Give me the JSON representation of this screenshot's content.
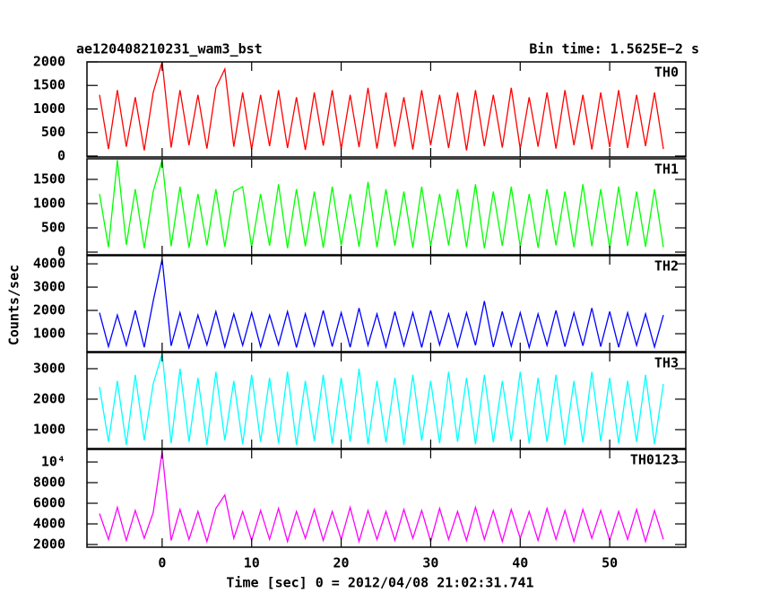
{
  "chart_data": {
    "type": "line",
    "title": "ae120408210231_wam3_bst",
    "subtitle": "Bin time: 1.5625E−2 s",
    "y_label": "Counts/sec",
    "x_label": "Time [sec] 0 = 2012/04/08 21:02:31.741",
    "xlim": [
      -8.4,
      58.5
    ],
    "xticks": [
      0,
      10,
      20,
      30,
      40,
      50
    ],
    "x": [
      -7,
      -6,
      -5,
      -4,
      -3,
      -2,
      -1,
      0,
      1,
      2,
      3,
      4,
      5,
      6,
      7,
      8,
      9,
      10,
      11,
      12,
      13,
      14,
      15,
      16,
      17,
      18,
      19,
      20,
      21,
      22,
      23,
      24,
      25,
      26,
      27,
      28,
      29,
      30,
      31,
      32,
      33,
      34,
      35,
      36,
      37,
      38,
      39,
      40,
      41,
      42,
      43,
      44,
      45,
      46,
      47,
      48,
      49,
      50,
      51,
      52,
      53,
      54,
      55,
      56
    ],
    "series": [
      {
        "name": "TH0",
        "color": "#ff0000",
        "ylim": [
          -20,
          2000
        ],
        "yticks": [
          0,
          500,
          1000,
          1500,
          2000
        ],
        "values": [
          1300,
          150,
          1400,
          200,
          1250,
          120,
          1350,
          2000,
          180,
          1400,
          230,
          1300,
          160,
          1450,
          1850,
          200,
          1350,
          140,
          1300,
          210,
          1400,
          170,
          1250,
          130,
          1350,
          220,
          1400,
          150,
          1300,
          190,
          1450,
          160,
          1350,
          200,
          1250,
          140,
          1400,
          230,
          1300,
          170,
          1350,
          120,
          1400,
          210,
          1300,
          180,
          1450,
          150,
          1250,
          200,
          1350,
          160,
          1400,
          230,
          1300,
          140,
          1350,
          190,
          1400,
          170,
          1300,
          210,
          1350,
          150
        ]
      },
      {
        "name": "TH1",
        "color": "#00ff00",
        "ylim": [
          -55,
          1925
        ],
        "yticks": [
          0,
          500,
          1000,
          1500
        ],
        "values": [
          1200,
          100,
          1900,
          150,
          1300,
          80,
          1250,
          1900,
          120,
          1350,
          90,
          1200,
          140,
          1300,
          110,
          1250,
          1350,
          100,
          1200,
          130,
          1400,
          80,
          1300,
          120,
          1250,
          90,
          1350,
          140,
          1200,
          110,
          1450,
          100,
          1300,
          130,
          1250,
          90,
          1350,
          120,
          1200,
          140,
          1300,
          100,
          1400,
          80,
          1250,
          130,
          1350,
          110,
          1200,
          90,
          1300,
          140,
          1250,
          100,
          1400,
          120,
          1300,
          80,
          1350,
          130,
          1250,
          110,
          1300,
          100
        ]
      },
      {
        "name": "TH2",
        "color": "#0000ff",
        "ylim": [
          230,
          4350
        ],
        "yticks": [
          1000,
          2000,
          3000,
          4000
        ],
        "values": [
          1900,
          450,
          1800,
          500,
          2000,
          420,
          2400,
          4200,
          480,
          1900,
          400,
          1800,
          520,
          1950,
          430,
          1850,
          500,
          1900,
          440,
          1800,
          520,
          1950,
          410,
          1850,
          480,
          2000,
          450,
          1900,
          420,
          2100,
          500,
          1850,
          430,
          1950,
          480,
          1900,
          410,
          2000,
          520,
          1850,
          440,
          1900,
          500,
          2400,
          430,
          1950,
          470,
          1900,
          410,
          1850,
          500,
          2000,
          440,
          1900,
          480,
          2100,
          450,
          1950,
          420,
          1900,
          500,
          1850,
          430,
          1800
        ]
      },
      {
        "name": "TH3",
        "color": "#00ffff",
        "ylim": [
          380,
          3530
        ],
        "yticks": [
          1000,
          2000,
          3000
        ],
        "values": [
          2400,
          600,
          2600,
          500,
          2800,
          650,
          2500,
          3500,
          550,
          3000,
          600,
          2700,
          500,
          2900,
          650,
          2600,
          520,
          2800,
          600,
          2700,
          550,
          2900,
          500,
          2600,
          620,
          2800,
          540,
          2700,
          600,
          3000,
          520,
          2600,
          580,
          2700,
          500,
          2800,
          640,
          2600,
          550,
          2900,
          600,
          2700,
          520,
          2800,
          580,
          2600,
          620,
          2900,
          540,
          2700,
          600,
          2800,
          500,
          2600,
          580,
          2900,
          620,
          2700,
          550,
          2600,
          600,
          2800,
          520,
          2500
        ]
      },
      {
        "name": "TH0123",
        "color": "#ff00ff",
        "ylim": [
          1740,
          11220
        ],
        "yticks": [
          2000,
          4000,
          6000,
          8000,
          {
            "value": 10000,
            "label": "10⁴"
          }
        ],
        "values": [
          5000,
          2500,
          5600,
          2400,
          5300,
          2600,
          5100,
          11000,
          2400,
          5400,
          2500,
          5200,
          2300,
          5500,
          6800,
          2600,
          5200,
          2400,
          5300,
          2500,
          5500,
          2300,
          5200,
          2600,
          5400,
          2400,
          5200,
          2500,
          5600,
          2300,
          5300,
          2500,
          5200,
          2400,
          5400,
          2600,
          5300,
          2300,
          5500,
          2500,
          5200,
          2400,
          5600,
          2500,
          5300,
          2300,
          5400,
          2600,
          5200,
          2400,
          5500,
          2500,
          5300,
          2300,
          5400,
          2600,
          5300,
          2400,
          5200,
          2500,
          5400,
          2300,
          5300,
          2500
        ]
      }
    ]
  }
}
